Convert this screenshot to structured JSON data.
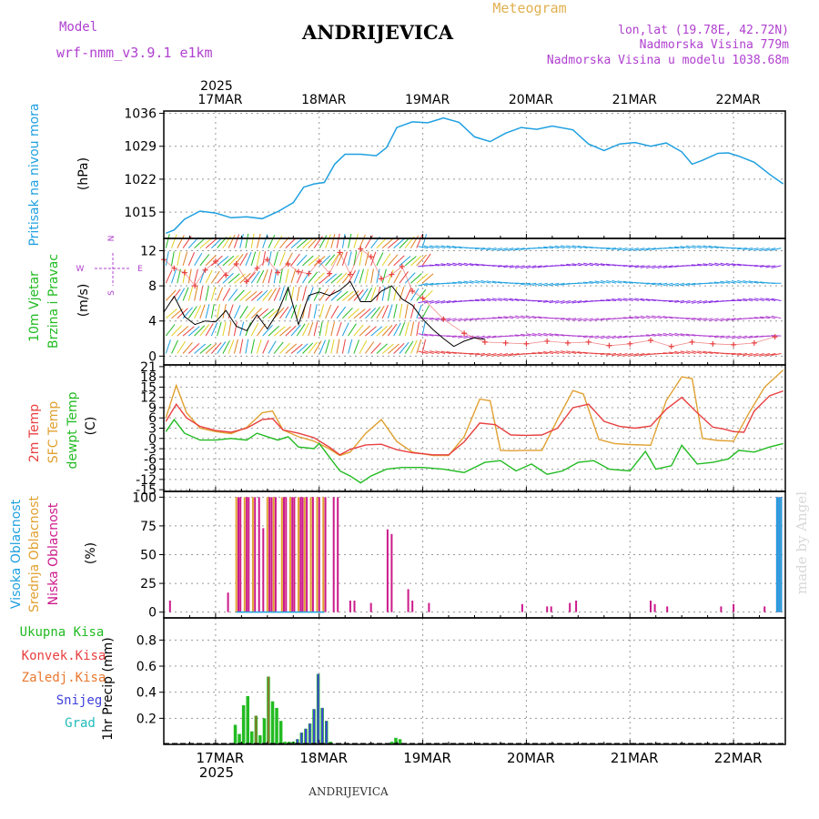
{
  "header": {
    "model_label": "Model",
    "model_name": "wrf-nmm_v3.9.1  e1km",
    "station": "ANDRIJEVICA",
    "meteogram": "Meteogram",
    "lonlat": "lon,lat (19.78E, 42.72N)",
    "elevation": "Nadmorska Visina 779m",
    "model_elevation": "Nadmorska Visina u modelu 1038.68m",
    "year_top": "2025",
    "year_bottom": "2025",
    "footer_station": "ANDRIJEVICA",
    "watermark": "made by Angel"
  },
  "colors": {
    "pressure": "#1fa0e0",
    "temp2m": "#e84040",
    "sfc_temp": "#e0a030",
    "dewpt": "#22bb22",
    "high_cloud": "#1fa0e0",
    "mid_cloud": "#e0a030",
    "low_cloud": "#cc1a8a",
    "total_precip": "#22bb22",
    "conv_precip": "#e84040",
    "frozen_precip": "#e87830",
    "snow": "#4040dd",
    "hail": "#22bbbb",
    "wind_max": "#e84040",
    "wind_speed": "#000000"
  },
  "chart_data": [
    {
      "type": "line",
      "panel": "pressure",
      "ylabel": [
        "Pritisak na nivou mora",
        "(hPa)"
      ],
      "yticks": [
        1015,
        1022,
        1029,
        1036
      ],
      "ylim": [
        1009.4,
        1036.5
      ],
      "xticks": [
        "17MAR",
        "18MAR",
        "19MAR",
        "20MAR",
        "21MAR",
        "22MAR"
      ],
      "xlim_days": [
        16.5,
        22.5
      ],
      "grid": true,
      "series": [
        {
          "x": [
            16.52,
            16.6,
            16.7,
            16.85,
            17.0,
            17.15,
            17.3,
            17.45,
            17.6,
            17.75,
            17.85,
            17.95,
            18.05,
            18.15,
            18.25,
            18.4,
            18.55,
            18.65,
            18.75,
            18.9,
            19.05,
            19.2,
            19.35,
            19.5,
            19.65,
            19.8,
            19.95,
            20.1,
            20.25,
            20.45,
            20.6,
            20.75,
            20.9,
            21.05,
            21.2,
            21.35,
            21.5,
            21.6,
            21.7,
            21.85,
            21.95,
            22.05,
            22.2,
            22.35,
            22.48
          ],
          "values": [
            1010.5,
            1011.2,
            1013.5,
            1015.2,
            1014.8,
            1013.8,
            1014.0,
            1013.6,
            1015.1,
            1017.0,
            1020.3,
            1021.0,
            1021.3,
            1025.2,
            1027.3,
            1027.3,
            1027.0,
            1028.7,
            1033.0,
            1034.2,
            1034.0,
            1035.0,
            1034.1,
            1031.0,
            1030.0,
            1031.8,
            1033.0,
            1032.6,
            1033.3,
            1032.5,
            1029.5,
            1028.1,
            1029.5,
            1029.8,
            1029.0,
            1029.7,
            1027.8,
            1025.2,
            1026.0,
            1027.5,
            1027.6,
            1026.9,
            1025.6,
            1023.0,
            1021.0
          ]
        }
      ]
    },
    {
      "type": "line",
      "panel": "wind",
      "ylabel": [
        "10m Vjetar",
        "Brzina i Pravac",
        "(m/s)"
      ],
      "compass": [
        "N",
        "S",
        "W",
        "E"
      ],
      "yticks": [
        0,
        4,
        8,
        12
      ],
      "ylim": [
        -1,
        13.4
      ],
      "grid": true,
      "series": [
        {
          "name": "speed",
          "x": [
            16.5,
            16.6,
            16.7,
            16.8,
            16.9,
            17.0,
            17.1,
            17.2,
            17.3,
            17.4,
            17.5,
            17.6,
            17.7,
            17.8,
            17.9,
            18.0,
            18.1,
            18.2,
            18.3,
            18.4,
            18.5,
            18.6,
            18.7,
            18.8,
            18.9,
            19.0,
            19.1,
            19.2,
            19.3,
            19.4,
            19.5,
            19.6
          ],
          "values": [
            5.0,
            6.8,
            4.5,
            3.6,
            4.0,
            3.9,
            5.2,
            3.4,
            2.9,
            4.7,
            3.1,
            5.0,
            7.8,
            3.6,
            6.9,
            7.3,
            6.9,
            7.5,
            8.5,
            6.2,
            6.2,
            7.4,
            8.0,
            6.5,
            5.8,
            4.2,
            3.0,
            2.0,
            1.1,
            1.7,
            2.1,
            1.9
          ]
        },
        {
          "name": "max",
          "x": [
            16.5,
            16.6,
            16.7,
            16.8,
            16.9,
            17.0,
            17.1,
            17.2,
            17.3,
            17.4,
            17.5,
            17.6,
            17.7,
            17.8,
            17.9,
            18.0,
            18.1,
            18.2,
            18.3,
            18.4,
            18.5,
            18.6,
            18.7,
            18.8,
            18.9,
            19.0,
            19.2,
            19.4,
            19.6,
            19.8,
            20.0,
            20.2,
            20.4,
            20.6,
            20.8,
            21.0,
            21.2,
            21.4,
            21.6,
            21.8,
            22.0,
            22.2,
            22.4
          ],
          "values": [
            11.0,
            10.0,
            9.5,
            8.0,
            9.8,
            10.8,
            9.2,
            10.5,
            8.5,
            10.0,
            11.0,
            9.5,
            10.5,
            9.6,
            9.4,
            10.8,
            9.4,
            11.8,
            9.3,
            12.2,
            11.3,
            8.8,
            9.3,
            10.2,
            7.4,
            6.6,
            4.2,
            2.6,
            1.6,
            1.5,
            1.4,
            1.7,
            1.5,
            1.6,
            1.2,
            1.4,
            1.8,
            1.1,
            1.6,
            1.4,
            1.3,
            1.5,
            2.2
          ]
        }
      ]
    },
    {
      "type": "line",
      "panel": "temperature",
      "ylabel": [
        "2m Temp",
        "SFC Temp",
        "dewpt Temp",
        "(C)"
      ],
      "yticks": [
        -15,
        -12,
        -9,
        -6,
        -3,
        0,
        3,
        6,
        9,
        12,
        15,
        18,
        21
      ],
      "ylim": [
        -15.5,
        21.5
      ],
      "grid": true,
      "series": [
        {
          "name": "2m Temp",
          "x": [
            16.52,
            16.62,
            16.72,
            16.85,
            17.0,
            17.15,
            17.3,
            17.45,
            17.55,
            17.65,
            17.8,
            17.95,
            18.1,
            18.2,
            18.3,
            18.45,
            18.6,
            18.75,
            18.9,
            19.1,
            19.25,
            19.4,
            19.55,
            19.7,
            19.85,
            20.0,
            20.15,
            20.3,
            20.45,
            20.6,
            20.75,
            20.9,
            21.05,
            21.2,
            21.35,
            21.5,
            21.65,
            21.8,
            21.9,
            22.0,
            22.1,
            22.2,
            22.35,
            22.48
          ],
          "values": [
            5.0,
            10.0,
            6.0,
            3.5,
            2.3,
            1.8,
            3.0,
            5.5,
            5.8,
            2.5,
            1.5,
            0.2,
            -2.6,
            -4.8,
            -3.2,
            -1.9,
            -1.7,
            -3.3,
            -4.2,
            -4.8,
            -4.8,
            -1.0,
            4.5,
            4.0,
            1.0,
            0.9,
            1.0,
            3.0,
            9.0,
            10.0,
            5.0,
            3.5,
            3.0,
            3.6,
            8.5,
            12.0,
            7.5,
            3.3,
            2.8,
            2.0,
            1.8,
            8.0,
            12.5,
            13.9
          ]
        },
        {
          "name": "SFC Temp",
          "x": [
            16.52,
            16.62,
            16.72,
            16.85,
            17.0,
            17.15,
            17.3,
            17.45,
            17.55,
            17.65,
            17.8,
            17.95,
            18.1,
            18.2,
            18.3,
            18.45,
            18.6,
            18.75,
            18.9,
            19.1,
            19.25,
            19.4,
            19.55,
            19.65,
            19.75,
            19.85,
            20.0,
            20.15,
            20.3,
            20.45,
            20.55,
            20.7,
            20.85,
            21.0,
            21.2,
            21.35,
            21.5,
            21.6,
            21.7,
            21.85,
            22.0,
            22.15,
            22.3,
            22.48
          ],
          "values": [
            6.0,
            15.5,
            7.5,
            3.0,
            2.0,
            1.4,
            3.2,
            7.5,
            8.0,
            2.5,
            0.5,
            -0.8,
            -3.1,
            -5.0,
            -4.0,
            1.5,
            5.5,
            -0.9,
            -4.0,
            -5.0,
            -5.0,
            0.5,
            11.5,
            11.0,
            -3.5,
            -3.6,
            -3.5,
            -3.5,
            5.5,
            14.0,
            13.0,
            -0.3,
            -1.5,
            -1.8,
            -2.0,
            11.0,
            18.0,
            17.5,
            0.0,
            -0.6,
            -0.8,
            7.5,
            15.0,
            20.0
          ]
        },
        {
          "name": "dewpt Temp",
          "x": [
            16.52,
            16.6,
            16.7,
            16.85,
            17.0,
            17.15,
            17.3,
            17.4,
            17.5,
            17.6,
            17.7,
            17.8,
            17.95,
            18.0,
            18.1,
            18.2,
            18.3,
            18.4,
            18.5,
            18.65,
            18.8,
            19.0,
            19.2,
            19.4,
            19.6,
            19.75,
            19.9,
            20.05,
            20.2,
            20.35,
            20.5,
            20.65,
            20.8,
            21.0,
            21.15,
            21.25,
            21.4,
            21.5,
            21.65,
            21.8,
            21.95,
            22.05,
            22.2,
            22.35,
            22.48
          ],
          "values": [
            2.0,
            5.5,
            1.5,
            -0.5,
            -0.5,
            0.0,
            -0.5,
            1.5,
            0.5,
            -0.5,
            0.5,
            -2.5,
            -3.0,
            -1.5,
            -5.5,
            -9.5,
            -11.0,
            -13.0,
            -11.0,
            -9.0,
            -8.5,
            -8.5,
            -9.0,
            -10.0,
            -7.0,
            -6.5,
            -9.5,
            -7.5,
            -10.5,
            -9.5,
            -7.0,
            -6.5,
            -9.0,
            -9.5,
            -3.8,
            -9.0,
            -8.0,
            -2.0,
            -7.5,
            -7.0,
            -6.0,
            -3.5,
            -4.0,
            -2.5,
            -1.5
          ]
        }
      ]
    },
    {
      "type": "bar",
      "panel": "cloud",
      "ylabel": [
        "Visoka Oblacnost",
        "Srednja Oblacnost",
        "Niska Oblacnost",
        "(%)"
      ],
      "yticks": [
        0,
        25,
        50,
        75,
        100
      ],
      "ylim": [
        -5,
        105
      ],
      "grid": true,
      "series": [
        {
          "name": "Srednja Oblacnost",
          "x": [
            17.2,
            17.28,
            17.36,
            17.5,
            17.56,
            17.64,
            17.72,
            17.8,
            17.86,
            17.92,
            17.98,
            18.04
          ],
          "values": [
            100,
            100,
            100,
            100,
            100,
            100,
            100,
            100,
            100,
            100,
            100,
            100
          ]
        },
        {
          "name": "Niska Oblacnost",
          "x": [
            16.56,
            17.12,
            17.22,
            17.24,
            17.3,
            17.32,
            17.38,
            17.42,
            17.46,
            17.52,
            17.54,
            17.58,
            17.66,
            17.68,
            17.74,
            17.76,
            17.82,
            17.84,
            17.88,
            17.94,
            18.0,
            18.06,
            18.14,
            18.18,
            18.3,
            18.34,
            18.5,
            18.66,
            18.7,
            18.86,
            18.9,
            19.06,
            19.96,
            20.2,
            20.24,
            20.42,
            20.48,
            21.2,
            21.24,
            21.36,
            21.88,
            22.0,
            22.3,
            22.42,
            22.44,
            22.46
          ],
          "values": [
            10,
            17,
            100,
            100,
            100,
            100,
            100,
            100,
            73,
            100,
            100,
            100,
            100,
            100,
            100,
            100,
            100,
            100,
            100,
            100,
            100,
            100,
            100,
            100,
            10,
            10,
            8,
            72,
            68,
            20,
            10,
            8,
            7,
            5,
            5,
            8,
            10,
            10,
            7,
            5,
            5,
            7,
            5,
            100,
            100,
            100
          ]
        },
        {
          "name": "Visoka Oblacnost",
          "x": [
            22.42,
            22.44,
            22.46
          ],
          "values": [
            100,
            100,
            100
          ]
        }
      ]
    },
    {
      "type": "bar",
      "panel": "precipitation",
      "ylabel": [
        "1hr Precip (mm)"
      ],
      "legend": [
        "Ukupna Kisa",
        "Konvek.Kisa",
        "Zaledj.Kisa",
        "Snijeg",
        "Grad"
      ],
      "yticks": [
        0.2,
        0.4,
        0.6,
        0.8
      ],
      "ylim": [
        0,
        0.97
      ],
      "grid": true,
      "series": [
        {
          "name": "Ukupna Kisa",
          "x": [
            17.19,
            17.23,
            17.27,
            17.31,
            17.35,
            17.39,
            17.43,
            17.47,
            17.51,
            17.55,
            17.59,
            17.63,
            17.67,
            17.71,
            17.75,
            17.79,
            17.83,
            17.87,
            17.91,
            17.95,
            17.99,
            18.03,
            18.07,
            18.11,
            18.7,
            18.74,
            18.78
          ],
          "values": [
            0.15,
            0.08,
            0.3,
            0.37,
            0.1,
            0.22,
            0.07,
            0.2,
            0.52,
            0.33,
            0.28,
            0.18,
            0.02,
            0.02,
            0.02,
            0.04,
            0.09,
            0.12,
            0.16,
            0.27,
            0.54,
            0.28,
            0.18,
            0.02,
            0.02,
            0.05,
            0.04
          ]
        },
        {
          "name": "Zaledj.Kisa",
          "x": [
            17.39,
            17.51
          ],
          "values": [
            0.22,
            0.52
          ]
        },
        {
          "name": "Snijeg",
          "x": [
            17.79,
            17.83,
            17.87,
            17.91,
            17.95,
            17.99,
            18.03,
            18.07
          ],
          "values": [
            0.04,
            0.09,
            0.12,
            0.16,
            0.27,
            0.54,
            0.28,
            0.18
          ]
        }
      ]
    }
  ]
}
